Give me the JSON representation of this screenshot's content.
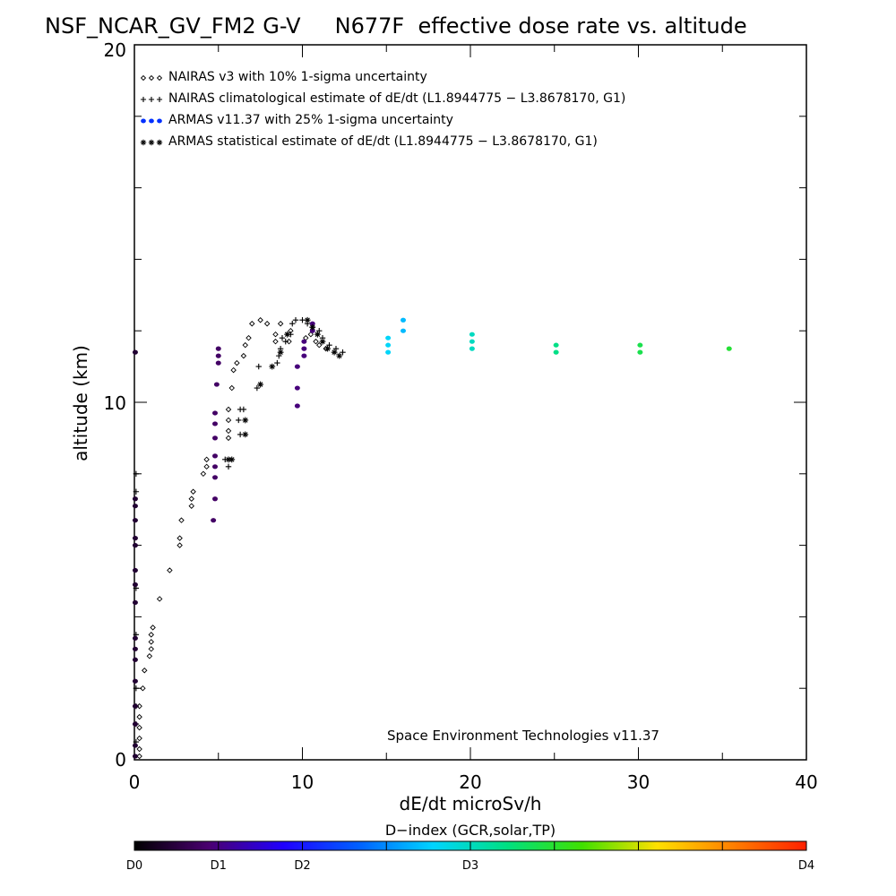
{
  "chart_data": {
    "type": "scatter",
    "title": "NSF_NCAR_GV_FM2 G-V     N677F  effective dose rate vs. altitude",
    "xlabel": "dE/dt microSv/h",
    "ylabel": "altitude (km)",
    "xlim": [
      0,
      40
    ],
    "ylim": [
      0,
      20
    ],
    "x_major_ticks": [
      0,
      10,
      20,
      30,
      40
    ],
    "y_major_ticks": [
      0,
      10,
      20
    ],
    "x_tick_labels": [
      "0",
      "10",
      "20",
      "30",
      "40"
    ],
    "y_tick_labels": [
      "0",
      "10",
      "20"
    ],
    "legend_position": "top-left",
    "credit": "Space Environment Technologies v11.37",
    "colorbar": {
      "title": "D−index (GCR,solar,TP)",
      "ticks": [
        {
          "label": "D0",
          "value": 0
        },
        {
          "label": "D1",
          "value": 5
        },
        {
          "label": "D2",
          "value": 10
        },
        {
          "label": "D3",
          "value": 20
        },
        {
          "label": "D4",
          "value": 40
        }
      ],
      "stops": [
        "#000000",
        "#4a0070",
        "#2000ff",
        "#0060ff",
        "#00d4ff",
        "#00e080",
        "#40e000",
        "#ffe000",
        "#ff8000",
        "#ff2000"
      ]
    },
    "series": [
      {
        "name": "NAIRAS v3 with 10% 1-sigma uncertainty",
        "marker": "diamond",
        "color": "#000000",
        "points": [
          [
            0.3,
            0.1
          ],
          [
            0.3,
            0.3
          ],
          [
            0.3,
            0.6
          ],
          [
            0.3,
            0.9
          ],
          [
            0.3,
            1.2
          ],
          [
            0.3,
            1.5
          ],
          [
            0.5,
            2.0
          ],
          [
            0.6,
            2.5
          ],
          [
            0.9,
            2.9
          ],
          [
            1.0,
            3.1
          ],
          [
            1.0,
            3.3
          ],
          [
            1.0,
            3.5
          ],
          [
            1.1,
            3.7
          ],
          [
            1.5,
            4.5
          ],
          [
            2.1,
            5.3
          ],
          [
            2.7,
            6.0
          ],
          [
            2.7,
            6.2
          ],
          [
            2.8,
            6.7
          ],
          [
            3.4,
            7.1
          ],
          [
            3.4,
            7.3
          ],
          [
            3.5,
            7.5
          ],
          [
            4.1,
            8.0
          ],
          [
            4.3,
            8.2
          ],
          [
            4.3,
            8.4
          ],
          [
            5.6,
            9.0
          ],
          [
            5.6,
            9.2
          ],
          [
            5.6,
            9.5
          ],
          [
            5.6,
            9.8
          ],
          [
            5.8,
            10.4
          ],
          [
            5.9,
            10.9
          ],
          [
            6.1,
            11.1
          ],
          [
            6.5,
            11.3
          ],
          [
            6.6,
            11.6
          ],
          [
            6.8,
            11.8
          ],
          [
            7.0,
            12.2
          ],
          [
            7.5,
            12.3
          ],
          [
            7.9,
            12.2
          ],
          [
            8.4,
            11.7
          ],
          [
            8.4,
            11.9
          ],
          [
            8.7,
            12.2
          ],
          [
            9.2,
            11.7
          ],
          [
            9.3,
            12.0
          ],
          [
            10.2,
            11.8
          ],
          [
            10.5,
            11.9
          ],
          [
            10.8,
            11.7
          ],
          [
            11.0,
            11.6
          ],
          [
            11.4,
            11.5
          ]
        ]
      },
      {
        "name": "NAIRAS climatological estimate of dE/dt (L1.8944775 − L3.8678170, G1)",
        "marker": "plus",
        "color": "#000000",
        "points": [
          [
            0.1,
            8.0
          ],
          [
            0.1,
            7.5
          ],
          [
            0.1,
            4.8
          ],
          [
            0.1,
            3.5
          ],
          [
            0.1,
            2.0
          ],
          [
            0.1,
            1.5
          ],
          [
            0.1,
            1.0
          ],
          [
            0.1,
            0.5
          ],
          [
            5.4,
            8.4
          ],
          [
            5.6,
            8.2
          ],
          [
            6.2,
            9.5
          ],
          [
            6.3,
            9.1
          ],
          [
            6.3,
            9.8
          ],
          [
            6.5,
            9.8
          ],
          [
            7.3,
            10.4
          ],
          [
            7.4,
            11.0
          ],
          [
            8.5,
            11.1
          ],
          [
            8.6,
            11.3
          ],
          [
            8.7,
            11.5
          ],
          [
            8.8,
            11.8
          ],
          [
            9.0,
            11.7
          ],
          [
            9.3,
            11.9
          ],
          [
            9.4,
            12.2
          ],
          [
            9.6,
            12.3
          ],
          [
            10.0,
            12.3
          ],
          [
            10.3,
            12.2
          ],
          [
            10.6,
            12.1
          ],
          [
            11.0,
            12.0
          ],
          [
            11.2,
            11.8
          ],
          [
            11.6,
            11.6
          ],
          [
            12.0,
            11.5
          ],
          [
            12.4,
            11.4
          ]
        ]
      },
      {
        "name": "ARMAS v11.37 with 25% 1-sigma uncertainty",
        "marker": "dot",
        "color": "#0040ff",
        "points": [
          [
            0.05,
            0.1,
            0.05
          ],
          [
            0.05,
            0.4,
            0.05
          ],
          [
            0.05,
            1.0,
            0.05
          ],
          [
            0.05,
            1.5,
            0.05
          ],
          [
            0.05,
            2.2,
            0.05
          ],
          [
            0.05,
            2.8,
            0.05
          ],
          [
            0.05,
            3.1,
            0.05
          ],
          [
            0.05,
            3.4,
            0.05
          ],
          [
            0.05,
            4.4,
            0.05
          ],
          [
            0.05,
            4.9,
            0.05
          ],
          [
            0.05,
            5.3,
            0.05
          ],
          [
            0.05,
            6.0,
            0.05
          ],
          [
            0.05,
            6.2,
            0.05
          ],
          [
            0.05,
            6.7,
            0.05
          ],
          [
            0.05,
            7.1,
            0.05
          ],
          [
            0.05,
            7.3,
            0.05
          ],
          [
            0.05,
            11.4,
            0.05
          ],
          [
            4.7,
            6.7,
            0.1
          ],
          [
            4.8,
            7.3,
            0.1
          ],
          [
            4.8,
            7.9,
            0.1
          ],
          [
            4.8,
            8.2,
            0.1
          ],
          [
            4.8,
            8.5,
            0.1
          ],
          [
            4.8,
            9.0,
            0.1
          ],
          [
            4.8,
            9.4,
            0.1
          ],
          [
            4.8,
            9.7,
            0.1
          ],
          [
            4.9,
            10.5,
            0.1
          ],
          [
            5.0,
            11.1,
            0.1
          ],
          [
            5.0,
            11.3,
            0.1
          ],
          [
            5.0,
            11.5,
            0.1
          ],
          [
            9.7,
            9.9,
            0.12
          ],
          [
            9.7,
            10.4,
            0.12
          ],
          [
            9.7,
            11.0,
            0.12
          ],
          [
            10.1,
            11.3,
            0.12
          ],
          [
            10.1,
            11.5,
            0.12
          ],
          [
            10.1,
            11.7,
            0.12
          ],
          [
            10.6,
            12.0,
            0.12
          ],
          [
            10.6,
            12.2,
            0.12
          ],
          [
            15.1,
            11.4,
            0.45
          ],
          [
            15.1,
            11.6,
            0.45
          ],
          [
            15.1,
            11.8,
            0.45
          ],
          [
            16.0,
            12.0,
            0.42
          ],
          [
            16.0,
            12.3,
            0.42
          ],
          [
            20.1,
            11.5,
            0.5
          ],
          [
            20.1,
            11.7,
            0.5
          ],
          [
            20.1,
            11.9,
            0.5
          ],
          [
            25.1,
            11.4,
            0.55
          ],
          [
            25.1,
            11.6,
            0.55
          ],
          [
            30.1,
            11.4,
            0.6
          ],
          [
            30.1,
            11.6,
            0.6
          ],
          [
            35.4,
            11.5,
            0.62
          ]
        ]
      },
      {
        "name": "ARMAS statistical estimate of dE/dt (L1.8944775 − L3.8678170, G1)",
        "marker": "asterisk",
        "color": "#000000",
        "points": [
          [
            5.6,
            8.4
          ],
          [
            5.8,
            8.4
          ],
          [
            6.6,
            9.1
          ],
          [
            6.6,
            9.5
          ],
          [
            7.5,
            10.5
          ],
          [
            8.2,
            11.0
          ],
          [
            8.7,
            11.4
          ],
          [
            9.1,
            11.9
          ],
          [
            10.3,
            12.3
          ],
          [
            10.6,
            12.1
          ],
          [
            10.9,
            11.9
          ],
          [
            11.2,
            11.7
          ],
          [
            11.5,
            11.5
          ],
          [
            11.9,
            11.4
          ],
          [
            12.2,
            11.3
          ]
        ]
      }
    ]
  }
}
